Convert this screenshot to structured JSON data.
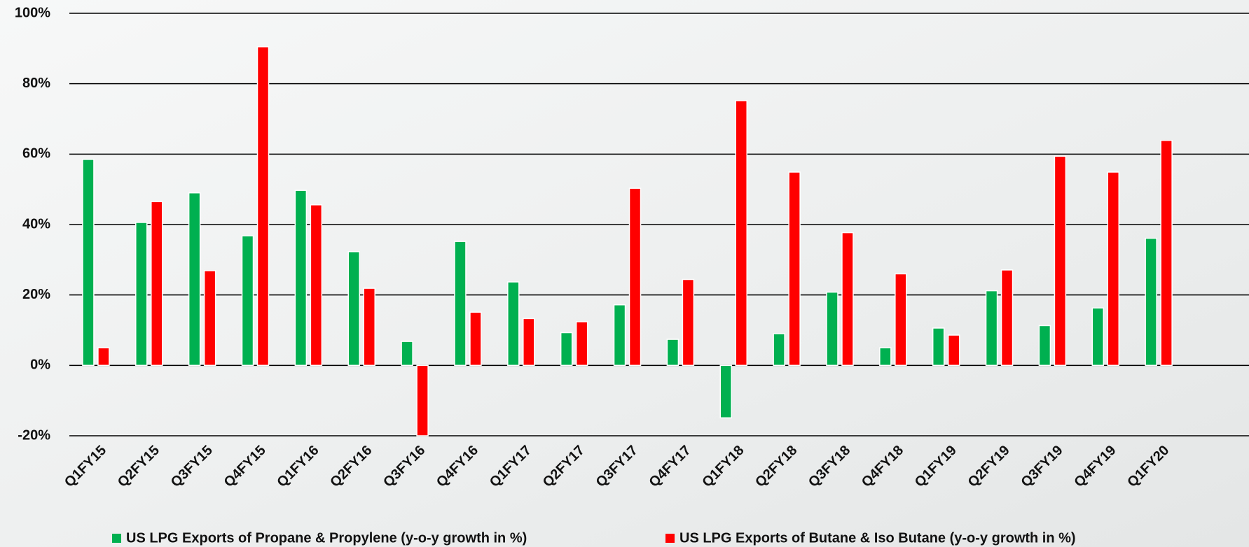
{
  "chart_data": {
    "type": "bar",
    "categories": [
      "Q1FY15",
      "Q2FY15",
      "Q3FY15",
      "Q4FY15",
      "Q1FY16",
      "Q2FY16",
      "Q3FY16",
      "Q4FY16",
      "Q1FY17",
      "Q2FY17",
      "Q3FY17",
      "Q4FY17",
      "Q1FY18",
      "Q2FY18",
      "Q3FY18",
      "Q4FY18",
      "Q1FY19",
      "Q2FY19",
      "Q3FY19",
      "Q4FY19",
      "Q1FY20"
    ],
    "series": [
      {
        "name": "US LPG Exports of Propane & Propylene (y-o-y growth in %)",
        "color": "#00b050",
        "values": [
          58.5,
          40.6,
          49,
          36.8,
          49.7,
          32.3,
          6.8,
          35.2,
          23.7,
          9.3,
          17.2,
          7.4,
          -14.9,
          9,
          20.8,
          5,
          10.6,
          21.2,
          11.3,
          16.3,
          36.1
        ]
      },
      {
        "name": "US LPG Exports of Butane & Iso Butane (y-o-y growth in %)",
        "color": "#ff0000",
        "values": [
          5,
          46.5,
          26.9,
          90.5,
          45.6,
          21.9,
          -20,
          15.1,
          13.3,
          12.4,
          50.3,
          24.4,
          75.2,
          54.9,
          37.7,
          26,
          8.6,
          27.1,
          59.4,
          54.9,
          63.9
        ]
      }
    ],
    "ylim": [
      -20,
      100
    ],
    "yticks": [
      {
        "value": -20,
        "label": "-20%"
      },
      {
        "value": 0,
        "label": "0%"
      },
      {
        "value": 20,
        "label": "20%"
      },
      {
        "value": 40,
        "label": "40%"
      },
      {
        "value": 60,
        "label": "60%"
      },
      {
        "value": 80,
        "label": "80%"
      },
      {
        "value": 100,
        "label": "100%"
      }
    ],
    "grid": true,
    "legend": "bottom"
  }
}
